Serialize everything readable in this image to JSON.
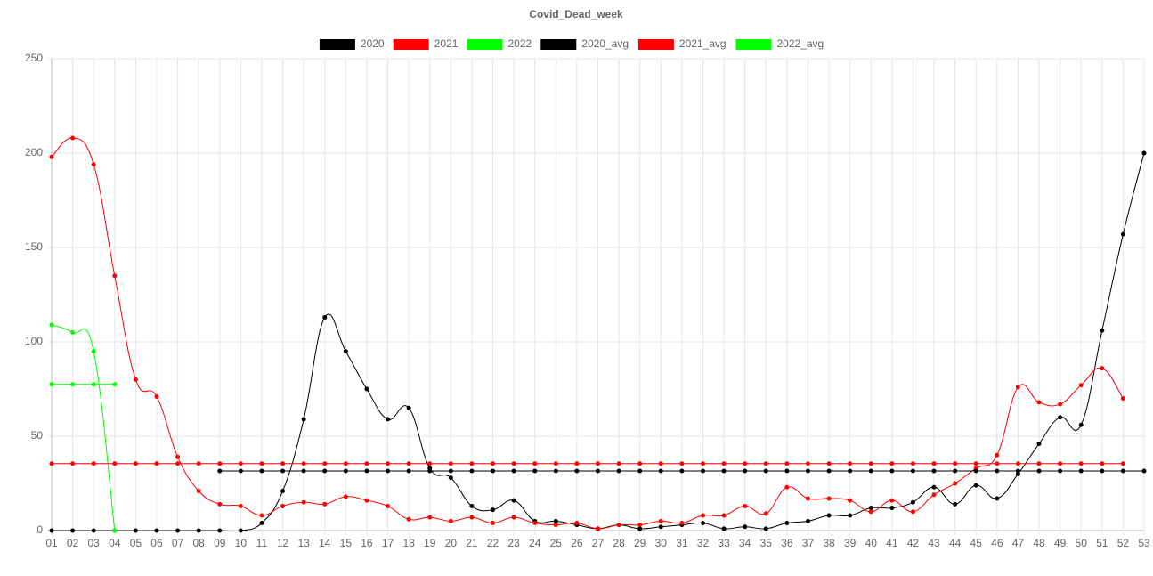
{
  "chart_data": {
    "type": "line",
    "title": "Covid_Dead_week",
    "categories": [
      "01",
      "02",
      "03",
      "04",
      "05",
      "06",
      "07",
      "08",
      "09",
      "10",
      "11",
      "12",
      "13",
      "14",
      "15",
      "16",
      "17",
      "18",
      "19",
      "20",
      "21",
      "22",
      "23",
      "24",
      "25",
      "26",
      "27",
      "28",
      "29",
      "30",
      "31",
      "32",
      "33",
      "34",
      "35",
      "36",
      "37",
      "38",
      "39",
      "40",
      "41",
      "42",
      "43",
      "44",
      "45",
      "46",
      "47",
      "48",
      "49",
      "50",
      "51",
      "52",
      "53"
    ],
    "series": [
      {
        "name": "2020",
        "color": "#000000",
        "values": [
          0,
          0,
          0,
          0,
          0,
          0,
          0,
          0,
          0,
          0,
          4,
          21,
          59,
          113,
          95,
          75,
          59,
          65,
          33,
          28,
          13,
          11,
          16,
          5,
          5,
          3,
          1,
          3,
          1,
          2,
          3,
          4,
          1,
          2,
          1,
          4,
          5,
          8,
          8,
          12,
          12,
          15,
          23,
          14,
          24,
          17,
          30,
          46,
          60,
          56,
          106,
          157,
          200
        ]
      },
      {
        "name": "2021",
        "color": "#ff0000",
        "values": [
          198,
          208,
          194,
          135,
          80,
          71,
          39,
          21,
          14,
          13,
          8,
          13,
          15,
          14,
          18,
          16,
          13,
          6,
          7,
          5,
          7,
          4,
          7,
          4,
          3,
          4,
          1,
          3,
          3,
          5,
          4,
          8,
          8,
          13,
          9,
          23,
          17,
          17,
          16,
          10,
          16,
          10,
          19,
          25,
          33,
          40,
          76,
          68,
          67,
          77,
          86,
          70,
          null
        ]
      },
      {
        "name": "2022",
        "color": "#00ff00",
        "values": [
          109,
          105,
          95,
          0,
          null,
          null,
          null,
          null,
          null,
          null,
          null,
          null,
          null,
          null,
          null,
          null,
          null,
          null,
          null,
          null,
          null,
          null,
          null,
          null,
          null,
          null,
          null,
          null,
          null,
          null,
          null,
          null,
          null,
          null,
          null,
          null,
          null,
          null,
          null,
          null,
          null,
          null,
          null,
          null,
          null,
          null,
          null,
          null,
          null,
          null,
          null,
          null,
          null
        ]
      },
      {
        "name": "2020_avg",
        "color": "#000000",
        "values": [
          null,
          null,
          null,
          null,
          null,
          null,
          null,
          null,
          31.6,
          31.6,
          31.6,
          31.6,
          31.6,
          31.6,
          31.6,
          31.6,
          31.6,
          31.6,
          31.6,
          31.6,
          31.6,
          31.6,
          31.6,
          31.6,
          31.6,
          31.6,
          31.6,
          31.6,
          31.6,
          31.6,
          31.6,
          31.6,
          31.6,
          31.6,
          31.6,
          31.6,
          31.6,
          31.6,
          31.6,
          31.6,
          31.6,
          31.6,
          31.6,
          31.6,
          31.6,
          31.6,
          31.6,
          31.6,
          31.6,
          31.6,
          31.6,
          31.6,
          31.6
        ]
      },
      {
        "name": "2021_avg",
        "color": "#ff0000",
        "values": [
          35.5,
          35.5,
          35.5,
          35.5,
          35.5,
          35.5,
          35.5,
          35.5,
          35.5,
          35.5,
          35.5,
          35.5,
          35.5,
          35.5,
          35.5,
          35.5,
          35.5,
          35.5,
          35.5,
          35.5,
          35.5,
          35.5,
          35.5,
          35.5,
          35.5,
          35.5,
          35.5,
          35.5,
          35.5,
          35.5,
          35.5,
          35.5,
          35.5,
          35.5,
          35.5,
          35.5,
          35.5,
          35.5,
          35.5,
          35.5,
          35.5,
          35.5,
          35.5,
          35.5,
          35.5,
          35.5,
          35.5,
          35.5,
          35.5,
          35.5,
          35.5,
          35.5,
          null
        ]
      },
      {
        "name": "2022_avg",
        "color": "#00ff00",
        "values": [
          77.5,
          77.5,
          77.5,
          77.5,
          null,
          null,
          null,
          null,
          null,
          null,
          null,
          null,
          null,
          null,
          null,
          null,
          null,
          null,
          null,
          null,
          null,
          null,
          null,
          null,
          null,
          null,
          null,
          null,
          null,
          null,
          null,
          null,
          null,
          null,
          null,
          null,
          null,
          null,
          null,
          null,
          null,
          null,
          null,
          null,
          null,
          null,
          null,
          null,
          null,
          null,
          null,
          null,
          null
        ]
      }
    ],
    "ylim": [
      0,
      250
    ],
    "yticks": [
      0,
      50,
      100,
      150,
      200,
      250
    ],
    "grid": true,
    "legend": "top"
  }
}
